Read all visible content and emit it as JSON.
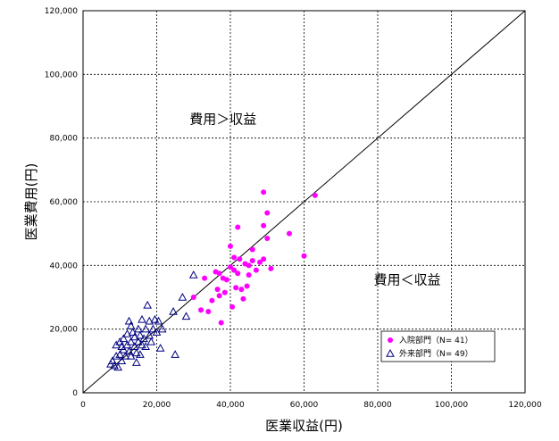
{
  "chart_data": {
    "type": "scatter",
    "xlabel": "医業収益(円)",
    "ylabel": "医業費用(円)",
    "xlim": [
      0,
      120000
    ],
    "ylim": [
      0,
      120000
    ],
    "x_ticks": [
      "0",
      "20,000",
      "40,000",
      "60,000",
      "80,000",
      "100,000",
      "120,000"
    ],
    "y_ticks": [
      "0",
      "20,000",
      "40,000",
      "60,000",
      "80,000",
      "100,000",
      "120,000"
    ],
    "grid": true,
    "diagonal": {
      "from": [
        0,
        0
      ],
      "to": [
        120000,
        120000
      ]
    },
    "legend_position": "bottom-right",
    "annotations": [
      {
        "text": "費用＞収益",
        "x": 38000,
        "y": 84500
      },
      {
        "text": "費用＜収益",
        "x": 88000,
        "y": 34000
      }
    ],
    "series": [
      {
        "name": "入院部門（N= 41）",
        "marker": "circle",
        "color": "#ff00ff",
        "points": [
          [
            30000,
            30000
          ],
          [
            32000,
            26000
          ],
          [
            33000,
            36000
          ],
          [
            34000,
            25500
          ],
          [
            35000,
            29000
          ],
          [
            36000,
            38000
          ],
          [
            36500,
            32500
          ],
          [
            37000,
            37500
          ],
          [
            37500,
            22000
          ],
          [
            38000,
            36000
          ],
          [
            38500,
            31500
          ],
          [
            39000,
            35500
          ],
          [
            40000,
            46000
          ],
          [
            40000,
            39500
          ],
          [
            40500,
            27000
          ],
          [
            41000,
            42500
          ],
          [
            41000,
            38500
          ],
          [
            41500,
            33000
          ],
          [
            42000,
            52000
          ],
          [
            42000,
            37500
          ],
          [
            42500,
            42000
          ],
          [
            43000,
            32500
          ],
          [
            43500,
            29500
          ],
          [
            44000,
            40500
          ],
          [
            44500,
            33500
          ],
          [
            45000,
            37000
          ],
          [
            45000,
            40000
          ],
          [
            46000,
            45000
          ],
          [
            46000,
            41500
          ],
          [
            47000,
            38500
          ],
          [
            48000,
            41000
          ],
          [
            49000,
            63000
          ],
          [
            49000,
            42000
          ],
          [
            49000,
            52500
          ],
          [
            50000,
            56500
          ],
          [
            50000,
            48500
          ],
          [
            51000,
            39000
          ],
          [
            56000,
            50000
          ],
          [
            60000,
            43000
          ],
          [
            63000,
            62000
          ],
          [
            37000,
            30500
          ]
        ]
      },
      {
        "name": "外来部門（N= 49）",
        "marker": "triangle",
        "color": "#000080",
        "points": [
          [
            7500,
            9000
          ],
          [
            8000,
            10000
          ],
          [
            8500,
            8500
          ],
          [
            9000,
            11500
          ],
          [
            9000,
            15000
          ],
          [
            9500,
            8000
          ],
          [
            10000,
            12000
          ],
          [
            10000,
            16000
          ],
          [
            10500,
            10000
          ],
          [
            11000,
            13500
          ],
          [
            11000,
            17000
          ],
          [
            11500,
            11500
          ],
          [
            12000,
            15000
          ],
          [
            12000,
            18500
          ],
          [
            12500,
            13000
          ],
          [
            12500,
            22500
          ],
          [
            13000,
            16000
          ],
          [
            13000,
            11500
          ],
          [
            13500,
            19000
          ],
          [
            14000,
            14500
          ],
          [
            14000,
            17500
          ],
          [
            14500,
            12500
          ],
          [
            15000,
            16000
          ],
          [
            15000,
            20000
          ],
          [
            15500,
            18000
          ],
          [
            15500,
            12000
          ],
          [
            16000,
            15000
          ],
          [
            16000,
            23000
          ],
          [
            16500,
            17000
          ],
          [
            17000,
            14500
          ],
          [
            17000,
            20000
          ],
          [
            17500,
            27500
          ],
          [
            18000,
            18000
          ],
          [
            18000,
            22500
          ],
          [
            18500,
            16000
          ],
          [
            19000,
            20000
          ],
          [
            19500,
            23000
          ],
          [
            20000,
            19000
          ],
          [
            20500,
            22500
          ],
          [
            21000,
            14000
          ],
          [
            21500,
            20000
          ],
          [
            24500,
            25500
          ],
          [
            25000,
            12000
          ],
          [
            27000,
            30000
          ],
          [
            28000,
            24000
          ],
          [
            30000,
            37000
          ],
          [
            13000,
            21000
          ],
          [
            14500,
            9500
          ],
          [
            10500,
            14500
          ]
        ]
      }
    ]
  }
}
